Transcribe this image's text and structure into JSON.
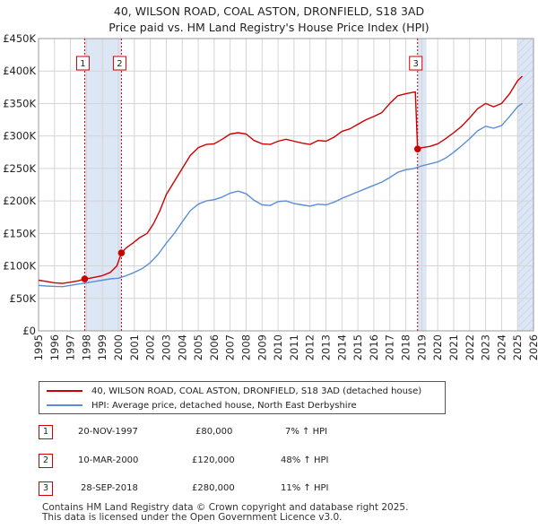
{
  "title_line1": "40, WILSON ROAD, COAL ASTON, DRONFIELD, S18 3AD",
  "title_line2": "Price paid vs. HM Land Registry's House Price Index (HPI)",
  "chart_data": {
    "type": "line",
    "title": "40, WILSON ROAD, COAL ASTON, DRONFIELD, S18 3AD — Price paid vs. HM Land Registry's House Price Index (HPI)",
    "xlim": [
      1995,
      2026
    ],
    "ylim": [
      0,
      450000
    ],
    "x_ticks": [
      "1995",
      "1996",
      "1997",
      "1998",
      "1999",
      "2000",
      "2001",
      "2002",
      "2003",
      "2004",
      "2005",
      "2006",
      "2007",
      "2008",
      "2009",
      "2010",
      "2011",
      "2012",
      "2013",
      "2014",
      "2015",
      "2016",
      "2017",
      "2018",
      "2019",
      "2020",
      "2021",
      "2022",
      "2023",
      "2024",
      "2025",
      "2026"
    ],
    "y_ticks": [
      {
        "value": 0,
        "label": "£0"
      },
      {
        "value": 50000,
        "label": "£50K"
      },
      {
        "value": 100000,
        "label": "£100K"
      },
      {
        "value": 150000,
        "label": "£150K"
      },
      {
        "value": 200000,
        "label": "£200K"
      },
      {
        "value": 250000,
        "label": "£250K"
      },
      {
        "value": 300000,
        "label": "£300K"
      },
      {
        "value": 350000,
        "label": "£350K"
      },
      {
        "value": 400000,
        "label": "£400K"
      },
      {
        "value": 450000,
        "label": "£450K"
      }
    ],
    "grid": true,
    "colors": {
      "property": "#cc0000",
      "hpi": "#5b8ed6",
      "shade": "#dce6f5",
      "grid": "#d4d4d4"
    },
    "shaded_ranges": [
      [
        1997.89,
        2000.19
      ],
      [
        2018.74,
        2019.3
      ],
      [
        2025.0,
        2026.0
      ]
    ],
    "hatched_from": 2025.0,
    "series": [
      {
        "name": "40, WILSON ROAD, COAL ASTON, DRONFIELD, S18 3AD (detached house)",
        "color": "#cc0000",
        "points": [
          [
            1995.0,
            78000
          ],
          [
            1995.5,
            76000
          ],
          [
            1996.0,
            74000
          ],
          [
            1996.5,
            73000
          ],
          [
            1997.0,
            75000
          ],
          [
            1997.5,
            77000
          ],
          [
            1997.89,
            80000
          ],
          [
            1998.2,
            81000
          ],
          [
            1998.6,
            83000
          ],
          [
            1999.0,
            85000
          ],
          [
            1999.5,
            90000
          ],
          [
            1999.9,
            100000
          ],
          [
            2000.19,
            120000
          ],
          [
            2000.5,
            128000
          ],
          [
            2000.9,
            135000
          ],
          [
            2001.3,
            143000
          ],
          [
            2001.8,
            150000
          ],
          [
            2002.2,
            165000
          ],
          [
            2002.6,
            185000
          ],
          [
            2003.0,
            210000
          ],
          [
            2003.5,
            230000
          ],
          [
            2004.0,
            250000
          ],
          [
            2004.5,
            270000
          ],
          [
            2005.0,
            282000
          ],
          [
            2005.5,
            287000
          ],
          [
            2006.0,
            288000
          ],
          [
            2006.5,
            295000
          ],
          [
            2007.0,
            303000
          ],
          [
            2007.5,
            305000
          ],
          [
            2008.0,
            303000
          ],
          [
            2008.5,
            293000
          ],
          [
            2009.0,
            288000
          ],
          [
            2009.5,
            287000
          ],
          [
            2010.0,
            292000
          ],
          [
            2010.5,
            295000
          ],
          [
            2011.0,
            292000
          ],
          [
            2011.5,
            289000
          ],
          [
            2012.0,
            287000
          ],
          [
            2012.5,
            293000
          ],
          [
            2013.0,
            292000
          ],
          [
            2013.5,
            298000
          ],
          [
            2014.0,
            307000
          ],
          [
            2014.5,
            311000
          ],
          [
            2015.0,
            318000
          ],
          [
            2015.5,
            325000
          ],
          [
            2016.0,
            330000
          ],
          [
            2016.5,
            336000
          ],
          [
            2017.0,
            350000
          ],
          [
            2017.5,
            362000
          ],
          [
            2018.0,
            365000
          ],
          [
            2018.6,
            368000
          ],
          [
            2018.74,
            280000
          ],
          [
            2019.0,
            282000
          ],
          [
            2019.5,
            284000
          ],
          [
            2020.0,
            288000
          ],
          [
            2020.5,
            296000
          ],
          [
            2021.0,
            305000
          ],
          [
            2021.5,
            315000
          ],
          [
            2022.0,
            328000
          ],
          [
            2022.5,
            342000
          ],
          [
            2023.0,
            350000
          ],
          [
            2023.5,
            345000
          ],
          [
            2024.0,
            350000
          ],
          [
            2024.5,
            365000
          ],
          [
            2025.0,
            385000
          ],
          [
            2025.3,
            392000
          ]
        ]
      },
      {
        "name": "HPI: Average price, detached house, North East Derbyshire",
        "color": "#5b8ed6",
        "points": [
          [
            1995.0,
            70000
          ],
          [
            1995.5,
            69000
          ],
          [
            1996.0,
            68500
          ],
          [
            1996.5,
            68000
          ],
          [
            1997.0,
            70000
          ],
          [
            1997.5,
            72000
          ],
          [
            1998.0,
            74000
          ],
          [
            1998.5,
            76000
          ],
          [
            1999.0,
            78000
          ],
          [
            1999.5,
            80000
          ],
          [
            2000.0,
            81000
          ],
          [
            2000.5,
            85000
          ],
          [
            2001.0,
            90000
          ],
          [
            2001.5,
            96000
          ],
          [
            2002.0,
            105000
          ],
          [
            2002.5,
            118000
          ],
          [
            2003.0,
            135000
          ],
          [
            2003.5,
            150000
          ],
          [
            2004.0,
            168000
          ],
          [
            2004.5,
            185000
          ],
          [
            2005.0,
            195000
          ],
          [
            2005.5,
            200000
          ],
          [
            2006.0,
            202000
          ],
          [
            2006.5,
            206000
          ],
          [
            2007.0,
            212000
          ],
          [
            2007.5,
            215000
          ],
          [
            2008.0,
            211000
          ],
          [
            2008.5,
            201000
          ],
          [
            2009.0,
            194000
          ],
          [
            2009.5,
            193000
          ],
          [
            2010.0,
            199000
          ],
          [
            2010.5,
            200000
          ],
          [
            2011.0,
            196000
          ],
          [
            2011.5,
            194000
          ],
          [
            2012.0,
            192000
          ],
          [
            2012.5,
            195000
          ],
          [
            2013.0,
            194000
          ],
          [
            2013.5,
            198000
          ],
          [
            2014.0,
            204000
          ],
          [
            2014.5,
            209000
          ],
          [
            2015.0,
            214000
          ],
          [
            2015.5,
            219000
          ],
          [
            2016.0,
            224000
          ],
          [
            2016.5,
            229000
          ],
          [
            2017.0,
            236000
          ],
          [
            2017.5,
            244000
          ],
          [
            2018.0,
            248000
          ],
          [
            2018.5,
            250000
          ],
          [
            2019.0,
            254000
          ],
          [
            2019.5,
            257000
          ],
          [
            2020.0,
            260000
          ],
          [
            2020.5,
            266000
          ],
          [
            2021.0,
            275000
          ],
          [
            2021.5,
            285000
          ],
          [
            2022.0,
            296000
          ],
          [
            2022.5,
            308000
          ],
          [
            2023.0,
            315000
          ],
          [
            2023.5,
            312000
          ],
          [
            2024.0,
            316000
          ],
          [
            2024.5,
            330000
          ],
          [
            2025.0,
            345000
          ],
          [
            2025.3,
            350000
          ]
        ]
      }
    ],
    "transactions": [
      {
        "num": "1",
        "x": 1997.89,
        "y": 80000
      },
      {
        "num": "2",
        "x": 2000.19,
        "y": 120000
      },
      {
        "num": "3",
        "x": 2018.74,
        "y": 280000
      }
    ]
  },
  "legend": {
    "property_label": "40, WILSON ROAD, COAL ASTON, DRONFIELD, S18 3AD (detached house)",
    "hpi_label": "HPI: Average price, detached house, North East Derbyshire"
  },
  "table": [
    {
      "num": "1",
      "date": "20-NOV-1997",
      "price": "£80,000",
      "hpi": "7% ↑ HPI"
    },
    {
      "num": "2",
      "date": "10-MAR-2000",
      "price": "£120,000",
      "hpi": "48% ↑ HPI"
    },
    {
      "num": "3",
      "date": "28-SEP-2018",
      "price": "£280,000",
      "hpi": "11% ↑ HPI"
    }
  ],
  "footer_line1": "Contains HM Land Registry data © Crown copyright and database right 2025.",
  "footer_line2": "This data is licensed under the Open Government Licence v3.0."
}
